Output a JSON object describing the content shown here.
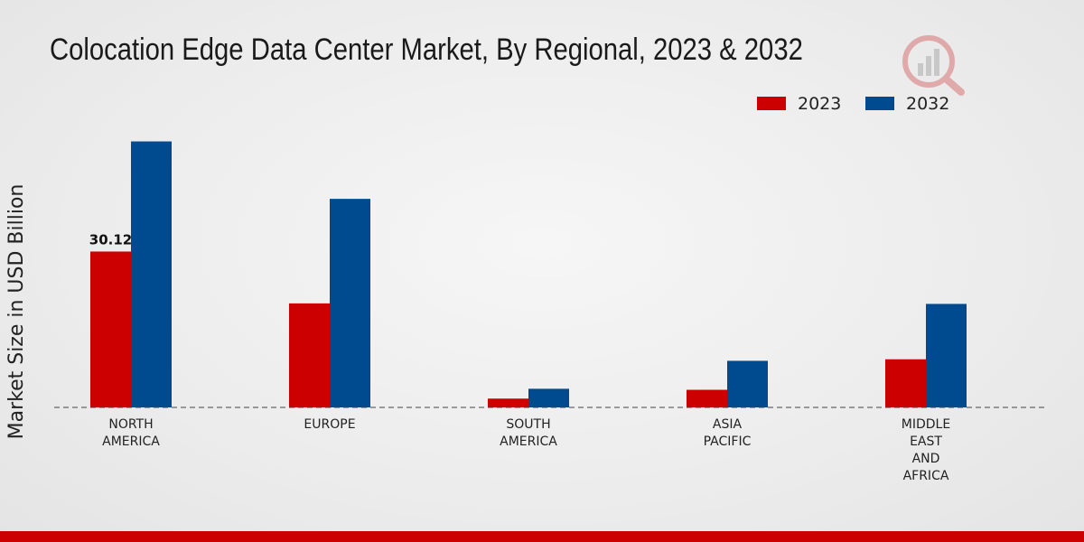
{
  "colors": {
    "series_2023": "#cc0000",
    "series_2032": "#004a8f",
    "bottom_bar": "#cc0000"
  },
  "chart_data": {
    "type": "bar",
    "title": "Colocation Edge Data Center Market, By Regional, 2023 & 2032",
    "xlabel": "",
    "ylabel": "Market Size in USD Billion",
    "categories": [
      [
        "NORTH",
        "AMERICA"
      ],
      [
        "EUROPE"
      ],
      [
        "SOUTH",
        "AMERICA"
      ],
      [
        "ASIA",
        "PACIFIC"
      ],
      [
        "MIDDLE",
        "EAST",
        "AND",
        "AFRICA"
      ]
    ],
    "series": [
      {
        "name": "2023",
        "values": [
          30.12,
          20.1,
          1.7,
          3.4,
          9.3
        ]
      },
      {
        "name": "2032",
        "values": [
          51.4,
          40.3,
          3.6,
          9.0,
          20.0
        ]
      }
    ],
    "data_labels": [
      {
        "series": 0,
        "index": 0,
        "text": "30.12"
      }
    ],
    "ylim": [
      0,
      70
    ],
    "legend_position": "top-right"
  }
}
